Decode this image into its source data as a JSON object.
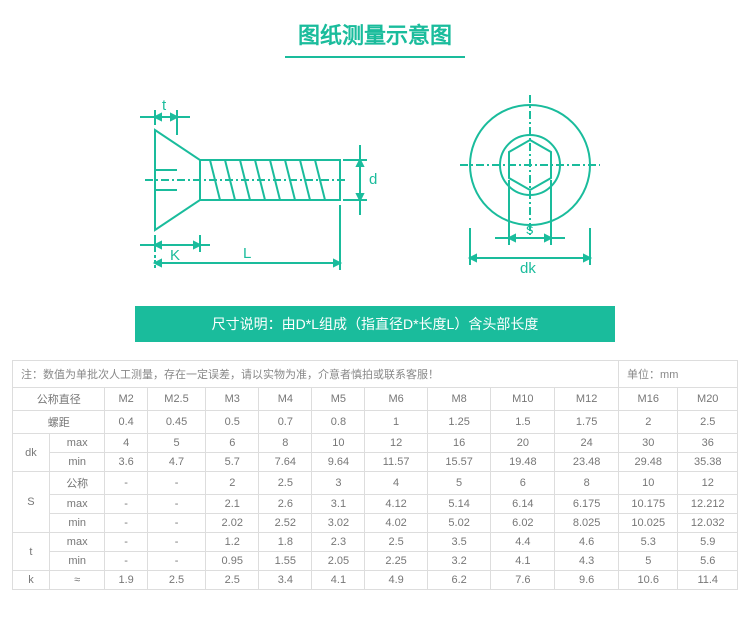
{
  "title": "图纸测量示意图",
  "desc": "尺寸说明：由D*L组成（指直径D*长度L）含头部长度",
  "note": "注：数值为单批次人工测量，存在一定误差，请以实物为准，介意者慎拍或联系客服！",
  "unit": "单位：mm",
  "diagram": {
    "stroke": "#1abc9c",
    "labels": {
      "t": "t",
      "K": "K",
      "L": "L",
      "d": "d",
      "s": "s",
      "dk": "dk"
    }
  },
  "table": {
    "headers": [
      "公称直径",
      "M2",
      "M2.5",
      "M3",
      "M4",
      "M5",
      "M6",
      "M8",
      "M10",
      "M12",
      "M16",
      "M20"
    ],
    "pitch_row": [
      "螺距",
      "0.4",
      "0.45",
      "0.5",
      "0.7",
      "0.8",
      "1",
      "1.25",
      "1.5",
      "1.75",
      "2",
      "2.5"
    ],
    "groups": [
      {
        "label": "dk",
        "rows": [
          {
            "sub": "max",
            "v": [
              "4",
              "5",
              "6",
              "8",
              "10",
              "12",
              "16",
              "20",
              "24",
              "30",
              "36"
            ]
          },
          {
            "sub": "min",
            "v": [
              "3.6",
              "4.7",
              "5.7",
              "7.64",
              "9.64",
              "11.57",
              "15.57",
              "19.48",
              "23.48",
              "29.48",
              "35.38"
            ]
          }
        ]
      },
      {
        "label": "S",
        "rows": [
          {
            "sub": "公称",
            "v": [
              "-",
              "-",
              "2",
              "2.5",
              "3",
              "4",
              "5",
              "6",
              "8",
              "10",
              "12"
            ]
          },
          {
            "sub": "max",
            "v": [
              "-",
              "-",
              "2.1",
              "2.6",
              "3.1",
              "4.12",
              "5.14",
              "6.14",
              "6.175",
              "10.175",
              "12.212"
            ]
          },
          {
            "sub": "min",
            "v": [
              "-",
              "-",
              "2.02",
              "2.52",
              "3.02",
              "4.02",
              "5.02",
              "6.02",
              "8.025",
              "10.025",
              "12.032"
            ]
          }
        ]
      },
      {
        "label": "t",
        "rows": [
          {
            "sub": "max",
            "v": [
              "-",
              "-",
              "1.2",
              "1.8",
              "2.3",
              "2.5",
              "3.5",
              "4.4",
              "4.6",
              "5.3",
              "5.9"
            ]
          },
          {
            "sub": "min",
            "v": [
              "-",
              "-",
              "0.95",
              "1.55",
              "2.05",
              "2.25",
              "3.2",
              "4.1",
              "4.3",
              "5",
              "5.6"
            ]
          }
        ]
      },
      {
        "label": "k",
        "rows": [
          {
            "sub": "≈",
            "v": [
              "1.9",
              "2.5",
              "2.5",
              "3.4",
              "4.1",
              "4.9",
              "6.2",
              "7.6",
              "9.6",
              "10.6",
              "11.4"
            ]
          }
        ]
      }
    ]
  }
}
